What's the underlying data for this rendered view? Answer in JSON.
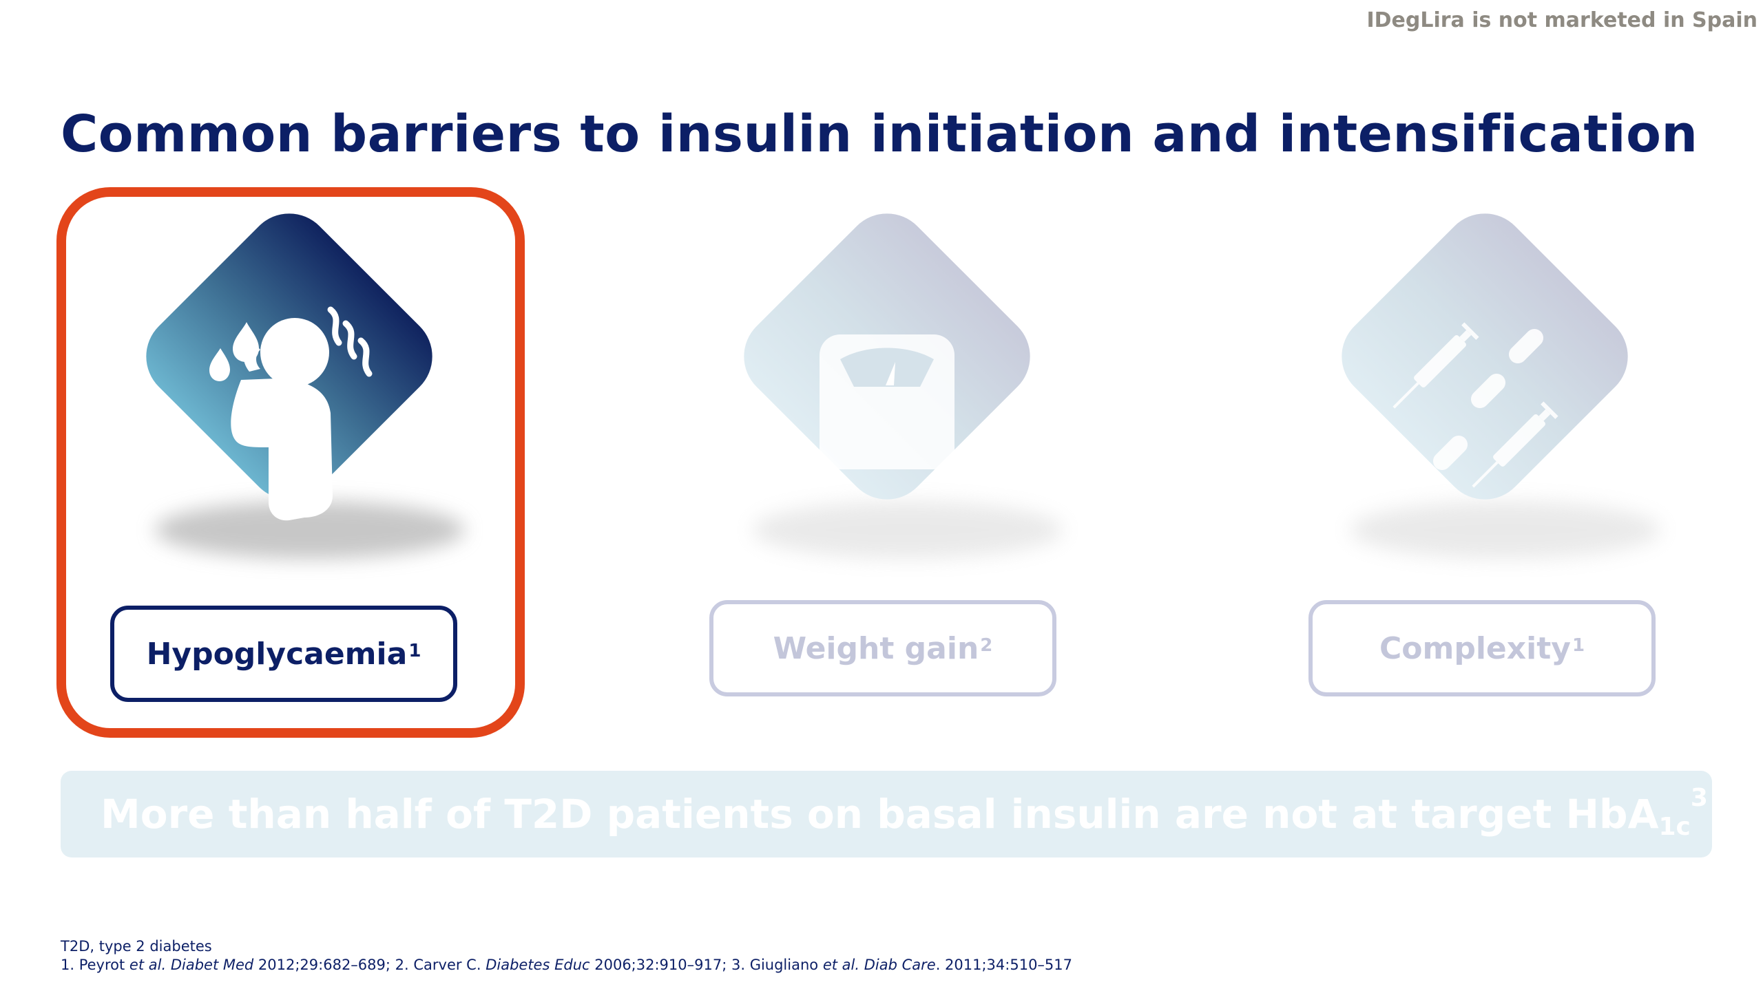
{
  "disclaimer": "IDegLira is not marketed in Spain",
  "title": "Common barriers to insulin initiation and intensification",
  "barriers": [
    {
      "label": "Hypoglycaemia",
      "ref": "1",
      "icon": "sweating-person-icon",
      "highlighted": true
    },
    {
      "label": "Weight gain",
      "ref": "2",
      "icon": "weighing-scale-icon",
      "highlighted": false
    },
    {
      "label": "Complexity",
      "ref": "1",
      "icon": "syringes-pills-icon",
      "highlighted": false
    }
  ],
  "banner": {
    "text": "More than half of T2D patients on basal insulin are not at target HbA",
    "subscript": "1c",
    "superscript": "3"
  },
  "footnotes": {
    "abbrev": "T2D, type 2 diabetes",
    "refs": [
      {
        "num": "1. ",
        "author": "Peyrot ",
        "etal": "et al.",
        "journal": "Diabet Med",
        "detail": " 2012;29:682–689; "
      },
      {
        "num": "2. ",
        "author": "Carver C. ",
        "etal": "",
        "journal": "Diabetes Educ",
        "detail": " 2006;32:910–917; "
      },
      {
        "num": "3. ",
        "author": "Giugliano ",
        "etal": "et al.",
        "journal": "Diab Care",
        "detail": ". 2011;34:510–517"
      }
    ]
  },
  "colors": {
    "navy": "#0c1f66",
    "highlight": "#e3451a",
    "banner_bg": "#e3eff4",
    "disclaimer": "#8e8a82"
  }
}
